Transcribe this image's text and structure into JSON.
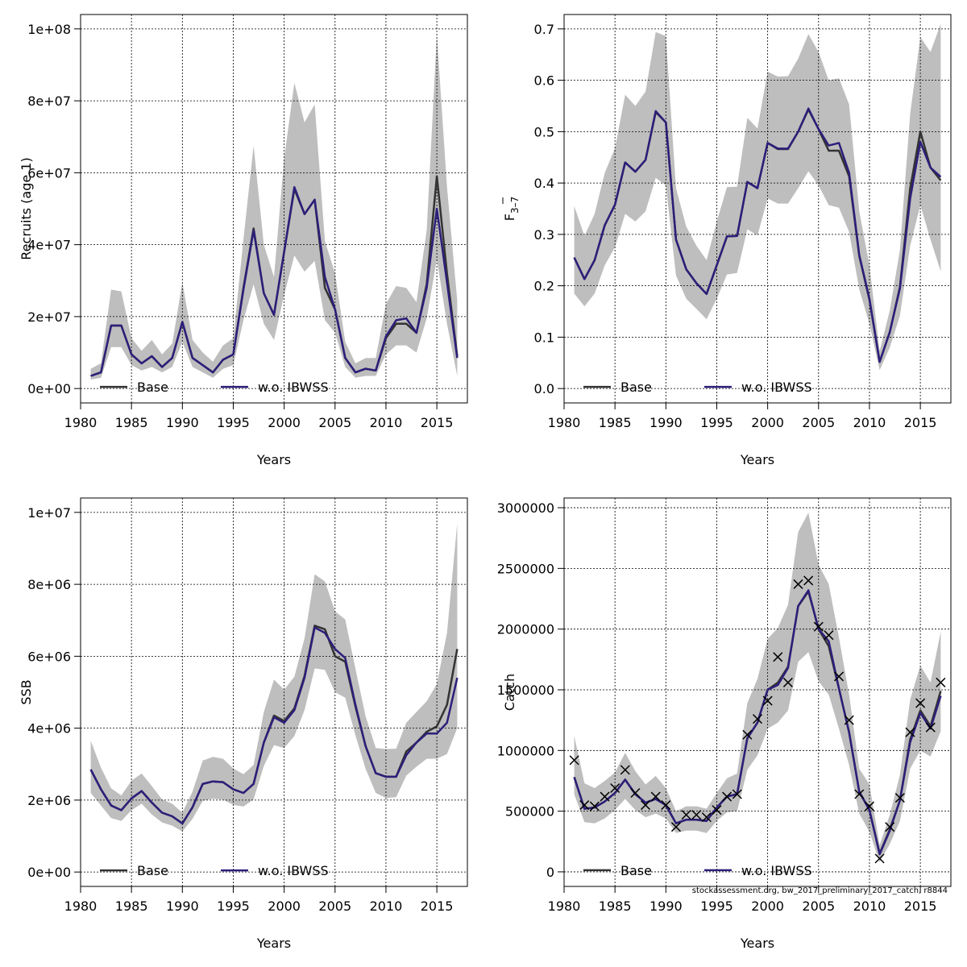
{
  "colors": {
    "base": "#333333",
    "alt": "#2b1f7a",
    "band": "#bebebe",
    "grid": "#000000"
  },
  "footnote": "stockassessment.org, bw_2017_preliminary_2017_catch, r8844",
  "chart_data": [
    {
      "type": "line",
      "title": "",
      "xlabel": "Years",
      "ylabel": "Recruits (age 1)",
      "xlim": [
        1980,
        2018
      ],
      "ylim": [
        -4000000,
        104000000
      ],
      "xticks": [
        1980,
        1985,
        1990,
        1995,
        2000,
        2005,
        2010,
        2015
      ],
      "yticks": [
        0,
        20000000,
        40000000,
        60000000,
        80000000,
        100000000
      ],
      "ytick_labels": [
        "0e+00",
        "2e+07",
        "4e+07",
        "6e+07",
        "8e+07",
        "1e+08"
      ],
      "x": [
        1981,
        1982,
        1983,
        1984,
        1985,
        1986,
        1987,
        1988,
        1989,
        1990,
        1991,
        1992,
        1993,
        1994,
        1995,
        1996,
        1997,
        1998,
        1999,
        2000,
        2001,
        2002,
        2003,
        2004,
        2005,
        2006,
        2007,
        2008,
        2009,
        2010,
        2011,
        2012,
        2013,
        2014,
        2015,
        2016,
        2017
      ],
      "series": [
        {
          "name": "Base",
          "values": [
            3500000,
            4500000,
            17500000,
            17500000,
            9500000,
            7000000,
            9000000,
            6000000,
            8500000,
            18500000,
            8500000,
            6500000,
            4500000,
            8000000,
            9500000,
            28000000,
            44500000,
            26500000,
            20500000,
            38000000,
            55500000,
            48500000,
            52500000,
            28000000,
            22000000,
            8500000,
            4500000,
            5500000,
            5000000,
            14000000,
            18000000,
            18000000,
            15500000,
            29000000,
            59000000,
            32000000,
            9000000
          ]
        },
        {
          "name": "w.o. IBWSS",
          "values": [
            3500000,
            4500000,
            17500000,
            17500000,
            9500000,
            7000000,
            9000000,
            6000000,
            8500000,
            18500000,
            8500000,
            6500000,
            4500000,
            8000000,
            9500000,
            27500000,
            44000000,
            26500000,
            20500000,
            38000000,
            56000000,
            48500000,
            52500000,
            31000000,
            22000000,
            8500000,
            4500000,
            5500000,
            5000000,
            14500000,
            19000000,
            19500000,
            15500000,
            28000000,
            50000000,
            29500000,
            8500000
          ]
        }
      ],
      "band_lower": [
        2500000,
        3000000,
        11500000,
        11500000,
        6500000,
        5000000,
        6000000,
        4500000,
        6000000,
        13000000,
        6000000,
        4500000,
        3000000,
        5500000,
        6500000,
        19000000,
        29000000,
        18000000,
        13500000,
        26000000,
        37000000,
        32500000,
        35500000,
        19000000,
        15500000,
        6000000,
        3000000,
        3500000,
        3500000,
        9500000,
        12000000,
        12000000,
        10000000,
        19500000,
        36000000,
        18000000,
        3500000
      ],
      "band_upper": [
        5500000,
        7000000,
        27500000,
        27000000,
        14000000,
        10500000,
        13500000,
        9500000,
        12500000,
        29500000,
        13500000,
        10000000,
        7500000,
        12000000,
        14000000,
        41500000,
        67500000,
        40000000,
        31000000,
        64000000,
        85000000,
        74000000,
        79000000,
        41000000,
        32000000,
        13000000,
        7000000,
        8500000,
        8500000,
        23500000,
        28500000,
        28000000,
        24000000,
        44000000,
        98500000,
        56000000,
        24500000
      ],
      "legend": [
        "Base",
        "w.o. IBWSS"
      ],
      "grid": true
    },
    {
      "type": "line",
      "title": "",
      "xlabel": "Years",
      "ylabel": "F̅ 3–7",
      "ylabel_main": "F",
      "ylabel_sub": "3–7",
      "xlim": [
        1980,
        2018
      ],
      "ylim": [
        -0.028,
        0.728
      ],
      "xticks": [
        1980,
        1985,
        1990,
        1995,
        2000,
        2005,
        2010,
        2015
      ],
      "yticks": [
        0.0,
        0.1,
        0.2,
        0.3,
        0.4,
        0.5,
        0.6,
        0.7
      ],
      "ytick_labels": [
        "0.0",
        "0.1",
        "0.2",
        "0.3",
        "0.4",
        "0.5",
        "0.6",
        "0.7"
      ],
      "x": [
        1981,
        1982,
        1983,
        1984,
        1985,
        1986,
        1987,
        1988,
        1989,
        1990,
        1991,
        1992,
        1993,
        1994,
        1995,
        1996,
        1997,
        1998,
        1999,
        2000,
        2001,
        2002,
        2003,
        2004,
        2005,
        2006,
        2007,
        2008,
        2009,
        2010,
        2011,
        2012,
        2013,
        2014,
        2015,
        2016,
        2017
      ],
      "series": [
        {
          "name": "Base",
          "values": [
            0.255,
            0.213,
            0.25,
            0.318,
            0.358,
            0.44,
            0.422,
            0.445,
            0.538,
            0.518,
            0.29,
            0.232,
            0.205,
            0.184,
            0.24,
            0.296,
            0.297,
            0.402,
            0.39,
            0.478,
            0.466,
            0.466,
            0.5,
            0.543,
            0.505,
            0.463,
            0.463,
            0.413,
            0.258,
            0.173,
            0.052,
            0.11,
            0.198,
            0.39,
            0.5,
            0.43,
            0.405
          ]
        },
        {
          "name": "w.o. IBWSS",
          "values": [
            0.255,
            0.213,
            0.25,
            0.318,
            0.358,
            0.44,
            0.422,
            0.445,
            0.54,
            0.518,
            0.29,
            0.232,
            0.205,
            0.184,
            0.24,
            0.296,
            0.297,
            0.402,
            0.39,
            0.478,
            0.467,
            0.467,
            0.5,
            0.545,
            0.505,
            0.473,
            0.478,
            0.42,
            0.26,
            0.175,
            0.052,
            0.11,
            0.195,
            0.37,
            0.48,
            0.43,
            0.412
          ]
        }
      ],
      "band_lower": [
        0.185,
        0.16,
        0.185,
        0.24,
        0.275,
        0.34,
        0.325,
        0.345,
        0.41,
        0.395,
        0.22,
        0.175,
        0.155,
        0.135,
        0.175,
        0.222,
        0.225,
        0.31,
        0.298,
        0.37,
        0.36,
        0.36,
        0.39,
        0.423,
        0.395,
        0.357,
        0.352,
        0.305,
        0.193,
        0.126,
        0.036,
        0.08,
        0.142,
        0.278,
        0.357,
        0.29,
        0.228
      ],
      "band_upper": [
        0.355,
        0.297,
        0.34,
        0.42,
        0.468,
        0.572,
        0.55,
        0.578,
        0.694,
        0.686,
        0.39,
        0.315,
        0.278,
        0.25,
        0.325,
        0.392,
        0.393,
        0.527,
        0.506,
        0.617,
        0.607,
        0.608,
        0.642,
        0.69,
        0.655,
        0.6,
        0.604,
        0.553,
        0.345,
        0.24,
        0.073,
        0.152,
        0.27,
        0.535,
        0.684,
        0.655,
        0.71
      ],
      "legend": [
        "Base",
        "w.o. IBWSS"
      ],
      "grid": true
    },
    {
      "type": "line",
      "title": "",
      "xlabel": "Years",
      "ylabel": "SSB",
      "xlim": [
        1980,
        2018
      ],
      "ylim": [
        -400000,
        10400000
      ],
      "xticks": [
        1980,
        1985,
        1990,
        1995,
        2000,
        2005,
        2010,
        2015
      ],
      "yticks": [
        0,
        2000000,
        4000000,
        6000000,
        8000000,
        10000000
      ],
      "ytick_labels": [
        "0e+00",
        "2e+06",
        "4e+06",
        "6e+06",
        "8e+06",
        "1e+07"
      ],
      "x": [
        1981,
        1982,
        1983,
        1984,
        1985,
        1986,
        1987,
        1988,
        1989,
        1990,
        1991,
        1992,
        1993,
        1994,
        1995,
        1996,
        1997,
        1998,
        1999,
        2000,
        2001,
        2002,
        2003,
        2004,
        2005,
        2006,
        2007,
        2008,
        2009,
        2010,
        2011,
        2012,
        2013,
        2014,
        2015,
        2016,
        2017
      ],
      "series": [
        {
          "name": "Base",
          "values": [
            2850000,
            2300000,
            1850000,
            1720000,
            2050000,
            2250000,
            1930000,
            1650000,
            1550000,
            1350000,
            1800000,
            2450000,
            2520000,
            2500000,
            2300000,
            2200000,
            2450000,
            3600000,
            4350000,
            4200000,
            4550000,
            5450000,
            6850000,
            6750000,
            6000000,
            5850000,
            4600000,
            3500000,
            2750000,
            2650000,
            2650000,
            3350000,
            3600000,
            3900000,
            4050000,
            4650000,
            6200000
          ]
        },
        {
          "name": "w.o. IBWSS",
          "values": [
            2850000,
            2300000,
            1850000,
            1720000,
            2050000,
            2250000,
            1930000,
            1650000,
            1550000,
            1350000,
            1800000,
            2450000,
            2520000,
            2500000,
            2300000,
            2200000,
            2450000,
            3600000,
            4300000,
            4150000,
            4500000,
            5400000,
            6800000,
            6650000,
            6200000,
            5950000,
            4650000,
            3500000,
            2750000,
            2650000,
            2650000,
            3250000,
            3600000,
            3850000,
            3850000,
            4150000,
            5400000
          ]
        }
      ],
      "band_lower": [
        2200000,
        1850000,
        1500000,
        1420000,
        1720000,
        1900000,
        1600000,
        1380000,
        1290000,
        1130000,
        1480000,
        1980000,
        2040000,
        2010000,
        1870000,
        1820000,
        2020000,
        2950000,
        3530000,
        3450000,
        3780000,
        4500000,
        5660000,
        5620000,
        5000000,
        4850000,
        3800000,
        2870000,
        2200000,
        2060000,
        2080000,
        2680000,
        2930000,
        3150000,
        3150000,
        3280000,
        4000000
      ],
      "band_upper": [
        3650000,
        2900000,
        2330000,
        2130000,
        2540000,
        2740000,
        2390000,
        2020000,
        1900000,
        1650000,
        2240000,
        3100000,
        3200000,
        3150000,
        2880000,
        2720000,
        2980000,
        4450000,
        5350000,
        5070000,
        5430000,
        6500000,
        8280000,
        8080000,
        7250000,
        7020000,
        5650000,
        4330000,
        3450000,
        3420000,
        3430000,
        4150000,
        4450000,
        4750000,
        5230000,
        6650000,
        9700000
      ],
      "legend": [
        "Base",
        "w.o. IBWSS"
      ],
      "grid": true
    },
    {
      "type": "line",
      "title": "",
      "xlabel": "Years",
      "ylabel": "Catch",
      "xlim": [
        1980,
        2018
      ],
      "ylim": [
        -120000,
        3080000
      ],
      "xticks": [
        1980,
        1985,
        1990,
        1995,
        2000,
        2005,
        2010,
        2015
      ],
      "yticks": [
        0,
        500000,
        1000000,
        1500000,
        2000000,
        2500000,
        3000000
      ],
      "ytick_labels": [
        "0",
        "500000",
        "1000000",
        "1500000",
        "2000000",
        "2500000",
        "3000000"
      ],
      "x": [
        1981,
        1982,
        1983,
        1984,
        1985,
        1986,
        1987,
        1988,
        1989,
        1990,
        1991,
        1992,
        1993,
        1994,
        1995,
        1996,
        1997,
        1998,
        1999,
        2000,
        2001,
        2002,
        2003,
        2004,
        2005,
        2006,
        2007,
        2008,
        2009,
        2010,
        2011,
        2012,
        2013,
        2014,
        2015,
        2016,
        2017
      ],
      "series": [
        {
          "name": "Base",
          "values": [
            780000,
            520000,
            530000,
            580000,
            650000,
            760000,
            640000,
            570000,
            600000,
            550000,
            400000,
            430000,
            430000,
            420000,
            530000,
            620000,
            640000,
            1100000,
            1230000,
            1500000,
            1560000,
            1690000,
            2190000,
            2310000,
            2000000,
            1860000,
            1510000,
            1150000,
            660000,
            510000,
            150000,
            350000,
            590000,
            1090000,
            1330000,
            1200000,
            1490000
          ]
        },
        {
          "name": "w.o. IBWSS",
          "values": [
            780000,
            520000,
            530000,
            580000,
            650000,
            760000,
            640000,
            570000,
            600000,
            550000,
            400000,
            430000,
            430000,
            420000,
            530000,
            620000,
            640000,
            1100000,
            1230000,
            1500000,
            1540000,
            1680000,
            2190000,
            2320000,
            2000000,
            1900000,
            1510000,
            1150000,
            660000,
            510000,
            145000,
            340000,
            590000,
            1070000,
            1310000,
            1180000,
            1450000
          ]
        }
      ],
      "band_lower": [
        640000,
        410000,
        400000,
        440000,
        510000,
        600000,
        510000,
        450000,
        480000,
        440000,
        320000,
        340000,
        340000,
        320000,
        420000,
        490000,
        500000,
        840000,
        960000,
        1180000,
        1230000,
        1330000,
        1730000,
        1810000,
        1570000,
        1460000,
        1180000,
        880000,
        480000,
        330000,
        80000,
        230000,
        420000,
        850000,
        1000000,
        950000,
        1160000
      ],
      "band_upper": [
        1120000,
        730000,
        690000,
        750000,
        820000,
        980000,
        830000,
        720000,
        790000,
        690000,
        500000,
        540000,
        540000,
        520000,
        650000,
        770000,
        810000,
        1390000,
        1590000,
        1920000,
        2010000,
        2200000,
        2800000,
        2960000,
        2530000,
        2370000,
        1930000,
        1460000,
        850000,
        720000,
        220000,
        470000,
        800000,
        1420000,
        1700000,
        1560000,
        1980000
      ],
      "observed": [
        920000,
        550000,
        540000,
        620000,
        690000,
        840000,
        650000,
        550000,
        620000,
        550000,
        370000,
        470000,
        470000,
        450000,
        510000,
        620000,
        640000,
        1130000,
        1260000,
        1410000,
        1770000,
        1560000,
        2370000,
        2400000,
        2020000,
        1950000,
        1610000,
        1250000,
        640000,
        540000,
        110000,
        370000,
        610000,
        1150000,
        1390000,
        1190000,
        1560000
      ],
      "legend": [
        "Base",
        "w.o. IBWSS"
      ],
      "grid": true
    }
  ]
}
